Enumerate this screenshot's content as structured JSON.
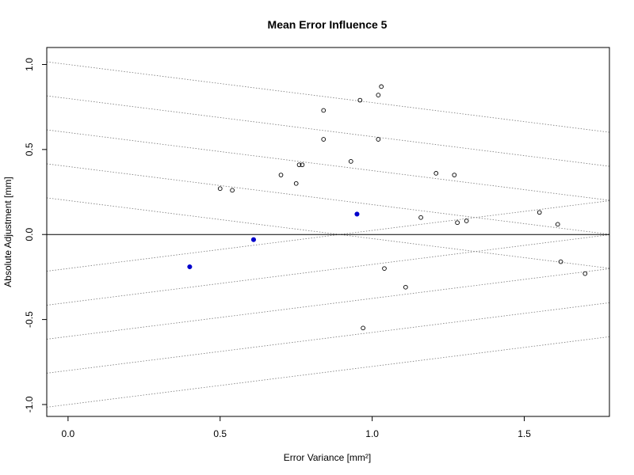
{
  "chart_data": {
    "type": "scatter",
    "title": "Mean Error Influence 5",
    "xlabel": "Error Variance [mm²]",
    "ylabel": "Absolute Adjustment [mm]",
    "xlim": [
      -0.07,
      1.78
    ],
    "ylim": [
      -1.07,
      1.1
    ],
    "xticks": [
      0.0,
      0.5,
      1.0,
      1.5
    ],
    "xtick_labels": [
      "0.0",
      "0.5",
      "1.0",
      "1.5"
    ],
    "yticks": [
      -1.0,
      -0.5,
      0.0,
      0.5,
      1.0
    ],
    "ytick_labels": [
      "-1.0",
      "-0.5",
      "0.0",
      "0.5",
      "1.0"
    ],
    "hline_y": 0,
    "grid": false,
    "series": [
      {
        "marker": "open-circle",
        "color": "#000000",
        "x": [
          0.5,
          0.54,
          0.7,
          0.75,
          0.76,
          0.77,
          0.84,
          0.84,
          0.93,
          0.96,
          1.02,
          1.02,
          1.03,
          1.16,
          1.21,
          1.27,
          1.28,
          1.31,
          1.55,
          1.61,
          1.04,
          1.11,
          0.97,
          1.62,
          1.7
        ],
        "y": [
          0.27,
          0.26,
          0.35,
          0.3,
          0.41,
          0.41,
          0.73,
          0.56,
          0.43,
          0.79,
          0.82,
          0.56,
          0.87,
          0.1,
          0.36,
          0.35,
          0.07,
          0.08,
          0.13,
          0.06,
          -0.2,
          -0.31,
          -0.55,
          -0.16,
          -0.23
        ]
      },
      {
        "marker": "filled-circle",
        "color": "#0000cc",
        "x": [
          0.4,
          0.61,
          0.95
        ],
        "y": [
          -0.19,
          -0.03,
          0.12
        ]
      }
    ],
    "reference_lines": {
      "style": "dotted",
      "color": "#777777",
      "upper_slope": -0.224,
      "upper_intercepts": [
        0.2,
        0.4,
        0.6,
        0.8,
        1.0
      ],
      "lower_slope": 0.224,
      "lower_intercepts": [
        -0.2,
        -0.4,
        -0.6,
        -0.8,
        -1.0
      ]
    }
  }
}
